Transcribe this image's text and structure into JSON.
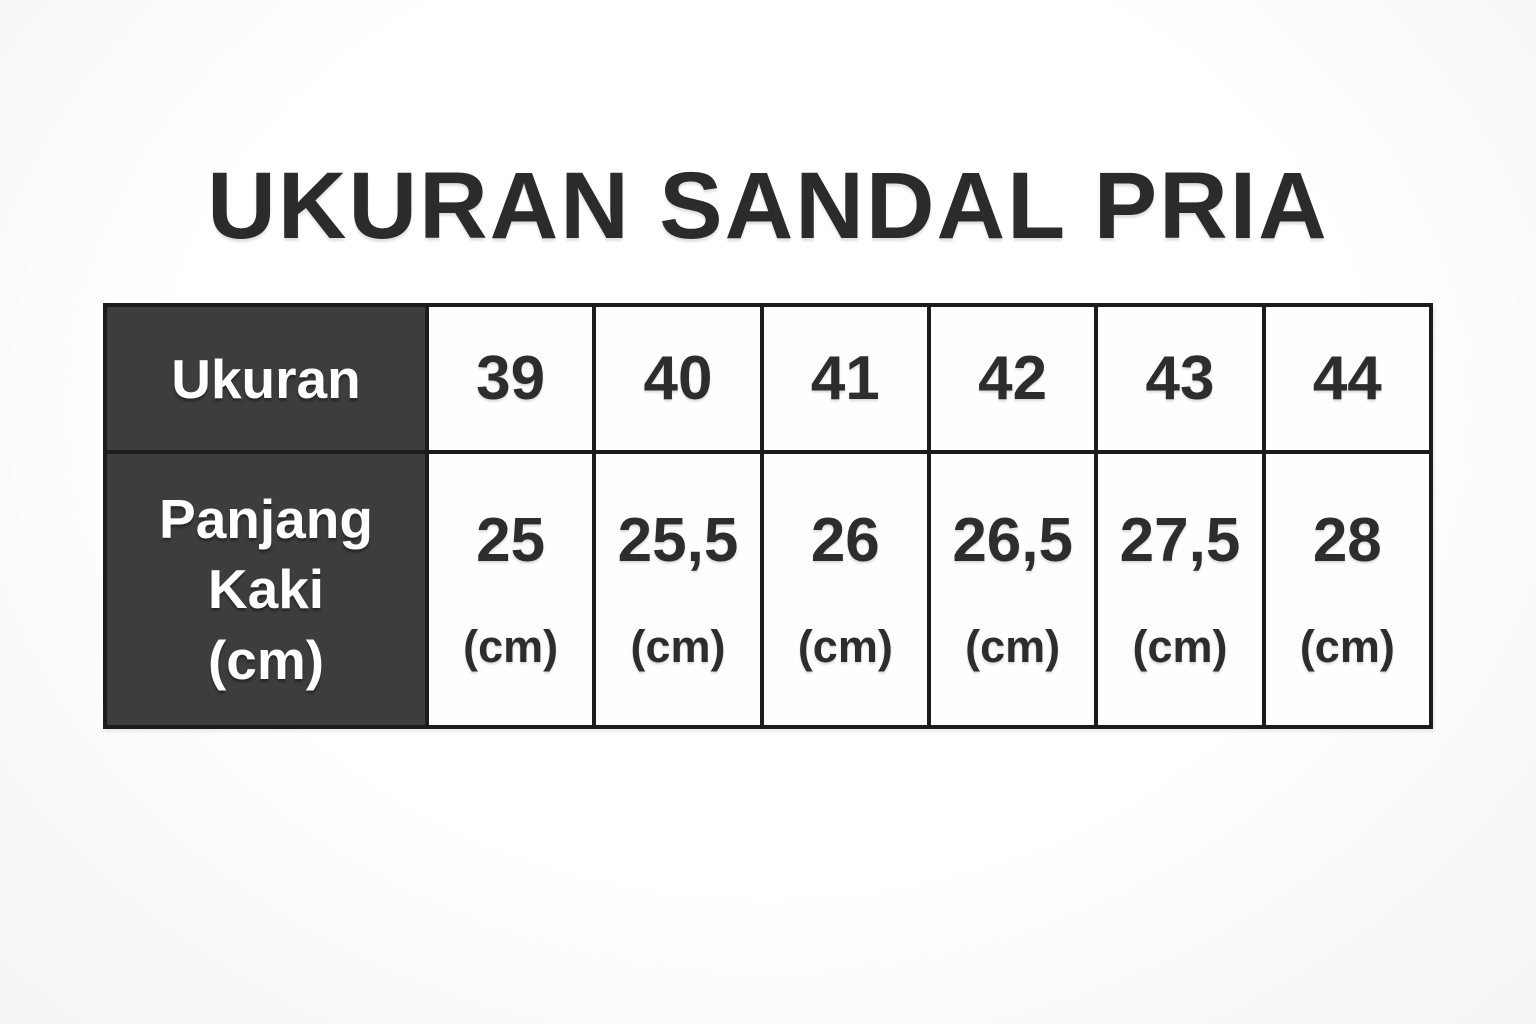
{
  "title": "UKURAN SANDAL PRIA",
  "colors": {
    "background": "#ffffff",
    "title_text": "#2b2b2b",
    "header_cell_background": "#3d3d3d",
    "header_cell_text": "#ffffff",
    "value_cell_background": "#fefefe",
    "value_cell_text": "#2d2d2d",
    "table_border": "#1c1c1c"
  },
  "table": {
    "size_row": {
      "header": "Ukuran",
      "cells": [
        "39",
        "40",
        "41",
        "42",
        "43",
        "44"
      ]
    },
    "length_row": {
      "header_lines": [
        "Panjang",
        "Kaki",
        "(cm)"
      ],
      "cells": [
        {
          "value": "25",
          "unit": "(cm)"
        },
        {
          "value": "25,5",
          "unit": "(cm)"
        },
        {
          "value": "26",
          "unit": "(cm)"
        },
        {
          "value": "26,5",
          "unit": "(cm)"
        },
        {
          "value": "27,5",
          "unit": "(cm)"
        },
        {
          "value": "28",
          "unit": "(cm)"
        }
      ]
    }
  },
  "chart_data": {
    "type": "table",
    "title": "UKURAN SANDAL PRIA",
    "columns": [
      "39",
      "40",
      "41",
      "42",
      "43",
      "44"
    ],
    "rows": [
      {
        "label": "Ukuran",
        "values": [
          "39",
          "40",
          "41",
          "42",
          "43",
          "44"
        ]
      },
      {
        "label": "Panjang Kaki (cm)",
        "values": [
          "25",
          "25,5",
          "26",
          "26,5",
          "27,5",
          "28"
        ]
      }
    ],
    "notes": "Men's sandal size chart: shoe size (Ukuran) vs foot length (Panjang Kaki) in cm"
  }
}
